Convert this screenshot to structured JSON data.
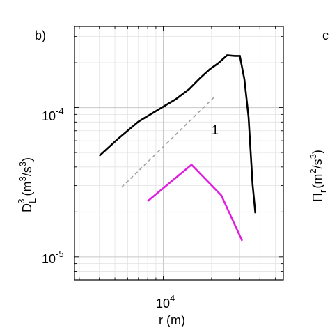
{
  "chart_data": {
    "type": "line",
    "panel_label": "b)",
    "next_panel_label": "c",
    "xlabel": "r (m)",
    "ylabel": {
      "base": "D",
      "sub": "L",
      "sup": "3",
      "unit": "(m",
      "unit_sup1": "3",
      "unit_mid": "/s",
      "unit_sup2": "3",
      "unit_close": ")"
    },
    "right_ylabel": {
      "base": "Π",
      "sub": "r",
      "unit": "(m",
      "unit_sup1": "2",
      "unit_mid": "/s",
      "unit_sup2": "3",
      "unit_close": ")",
      "color": "#0072BD"
    },
    "x_scale": "log",
    "y_scale": "log",
    "xlim": [
      2800,
      56000
    ],
    "ylim": [
      7e-06,
      0.00035
    ],
    "x_ticks": [
      {
        "base": "10",
        "exp": "4",
        "value": 10000
      }
    ],
    "y_ticks": [
      {
        "base": "10",
        "exp": "-4",
        "value": 0.0001
      },
      {
        "base": "10",
        "exp": "-5",
        "value": 1e-05
      }
    ],
    "grid": true,
    "slope_annotation": {
      "text": "1",
      "x": 20000,
      "y": 6.6e-05
    },
    "series": [
      {
        "color": "#000000",
        "style": "solid",
        "x": [
          4000,
          5200,
          7000,
          9500,
          12000,
          14500,
          17000,
          19500,
          22000,
          25000,
          28000,
          30000,
          32000,
          34000,
          36000,
          37500
        ],
        "y": [
          4.75e-05,
          6.15e-05,
          8.05e-05,
          9.8e-05,
          0.000114,
          0.000133,
          0.000158,
          0.000181,
          0.000198,
          0.000224,
          0.000222,
          0.000222,
          0.000155,
          8.65e-05,
          3.05e-05,
          1.96e-05
        ]
      },
      {
        "color": "#E01CE0",
        "style": "solid",
        "x": [
          8000,
          15000,
          23000,
          31000
        ],
        "y": [
          2.36e-05,
          4.14e-05,
          2.58e-05,
          1.28e-05
        ]
      },
      {
        "color": "#A0A0A0",
        "style": "dashed",
        "x": [
          5500,
          21000
        ],
        "y": [
          2.92e-05,
          0.000119
        ]
      }
    ]
  }
}
